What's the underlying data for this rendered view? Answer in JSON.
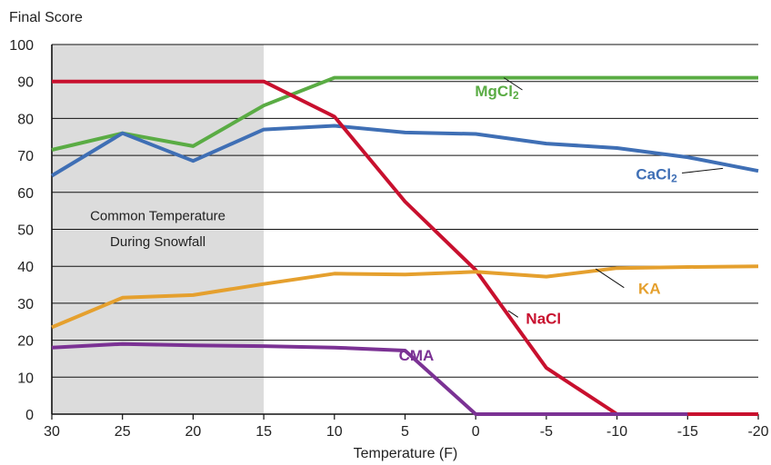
{
  "chart_data": {
    "type": "line",
    "ylabel": "Final Score",
    "xlabel": "Temperature (F)",
    "ylim": [
      0,
      100
    ],
    "yticks": [
      0,
      10,
      20,
      30,
      40,
      50,
      60,
      70,
      80,
      90,
      100
    ],
    "x": [
      30,
      25,
      20,
      15,
      10,
      5,
      0,
      -5,
      -10,
      -15,
      -20
    ],
    "xlim": [
      30,
      -20
    ],
    "grid": "horizontal",
    "shaded_region": {
      "x_range": [
        30,
        15
      ],
      "label_line1": "Common Temperature",
      "label_line2": "During Snowfall",
      "color": "#dcdcdc"
    },
    "series": [
      {
        "name": "MgCl",
        "subscript": "2",
        "color": "#5aac44",
        "values": [
          71.5,
          76,
          72.5,
          83.5,
          91,
          91,
          91,
          91,
          91,
          91,
          91
        ],
        "label_anchor": [
          -1.5,
          86
        ],
        "leader_to": [
          -2,
          91
        ]
      },
      {
        "name": "CaCl",
        "subscript": "2",
        "color": "#3f6fb5",
        "values": [
          64.5,
          76,
          68.5,
          77,
          78,
          76.2,
          75.8,
          73.2,
          72,
          69.5,
          65.8
        ],
        "label_anchor": [
          -12.8,
          63.5
        ],
        "leader_to": [
          -17.5,
          66.5
        ]
      },
      {
        "name": "NaCl",
        "subscript": "",
        "color": "#c8102e",
        "values": [
          90,
          90,
          90,
          90,
          80.5,
          57.5,
          39,
          12.5,
          0,
          0,
          0
        ],
        "label_anchor": [
          -4.8,
          24.5
        ],
        "leader_to": [
          -2.3,
          28
        ]
      },
      {
        "name": "KA",
        "subscript": "",
        "color": "#e5a02e",
        "values": [
          23.5,
          31.5,
          32.2,
          35.2,
          38,
          37.8,
          38.5,
          37.2,
          39.5,
          39.8,
          40
        ],
        "label_anchor": [
          -12.3,
          32.5
        ],
        "leader_to": [
          -8.5,
          39.3
        ]
      },
      {
        "name": "CMA",
        "subscript": "",
        "color": "#7b3294",
        "values": [
          18,
          19,
          18.6,
          18.4,
          18,
          17.2,
          0,
          0,
          0,
          0,
          null
        ],
        "label_anchor": [
          4.2,
          14.5
        ],
        "leader_to": null
      }
    ]
  }
}
